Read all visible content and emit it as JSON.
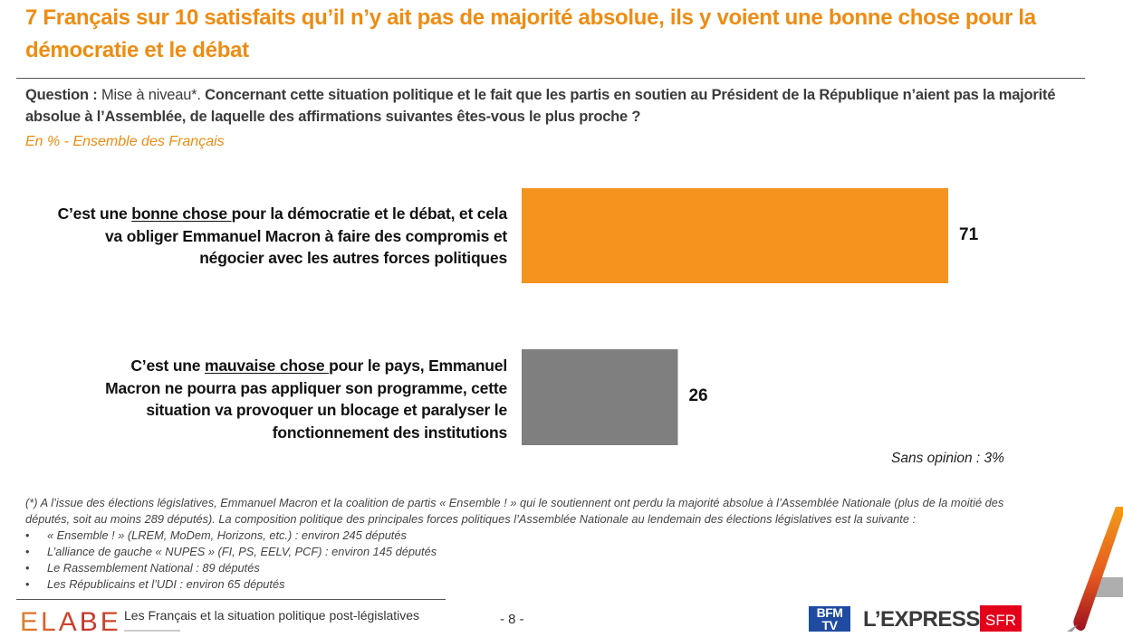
{
  "title": "7 Français sur 10 satisfaits qu’il n’y ait pas de majorité absolue, ils y voient une bonne chose pour la démocratie et le débat",
  "question": {
    "prefix": "Question :",
    "tag": " Mise à niveau*.",
    "text": " Concernant cette situation politique et le fait que les partis en soutien au Président de la République n’aient pas la majorité absolue à l’Assemblée, de laquelle des affirmations suivantes êtes-vous le plus proche ?"
  },
  "subtitle": "En % - Ensemble des Français",
  "chart_data": {
    "type": "bar",
    "orientation": "horizontal",
    "unit": "%",
    "xlim": [
      0,
      100
    ],
    "categories": [
      {
        "pre": "C’est une ",
        "underlined": "bonne chose ",
        "post": "pour la démocratie et le débat, et cela va obliger Emmanuel Macron à faire des compromis et négocier avec les autres forces politiques"
      },
      {
        "pre": "C’est une ",
        "underlined": "mauvaise chose ",
        "post": "pour le pays, Emmanuel Macron ne pourra pas appliquer son programme, cette situation va provoquer un blocage et paralyser le fonctionnement des institutions"
      }
    ],
    "values": [
      71,
      26
    ],
    "colors": [
      "#F5931F",
      "#7F7F7F"
    ],
    "annotation": "Sans opinion : 3%"
  },
  "footnote": {
    "intro": "(*) A l’issue des élections législatives, Emmanuel Macron et la coalition de partis « Ensemble ! » qui le soutiennent ont perdu la majorité absolue à l’Assemblée Nationale (plus de la moitié des députés, soit au moins 289 députés). La composition politique des principales forces politiques l’Assemblée Nationale au lendemain des élections législatives est la suivante :",
    "items": [
      "« Ensemble ! » (LREM, MoDem, Horizons, etc.) : environ 245 députés",
      "L’alliance de gauche « NUPES » (FI, PS, EELV, PCF) : environ 145 députés",
      "Le Rassemblement National : 89 députés",
      "Les Républicains et l’UDI : environ 65 députés"
    ],
    "bullet": "•"
  },
  "footer": {
    "brand": "ELABE",
    "title": "Les Français et la situation politique post-législatives",
    "page": "- 8 -",
    "partners": [
      "BFM TV",
      "L’EXPRESS",
      "SFR"
    ]
  },
  "colors": {
    "accent": "#EE8C12",
    "bar_positive": "#F5931F",
    "bar_negative": "#7F7F7F"
  }
}
